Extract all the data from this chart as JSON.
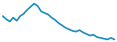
{
  "values": [
    72,
    68,
    65,
    70,
    66,
    72,
    75,
    80,
    84,
    88,
    85,
    78,
    76,
    74,
    70,
    67,
    63,
    60,
    57,
    55,
    53,
    52,
    54,
    51,
    49,
    47,
    48,
    45,
    44,
    43,
    42,
    44,
    42
  ],
  "line_color": "#1a8cbf",
  "background_color": "#ffffff",
  "linewidth": 1.2
}
